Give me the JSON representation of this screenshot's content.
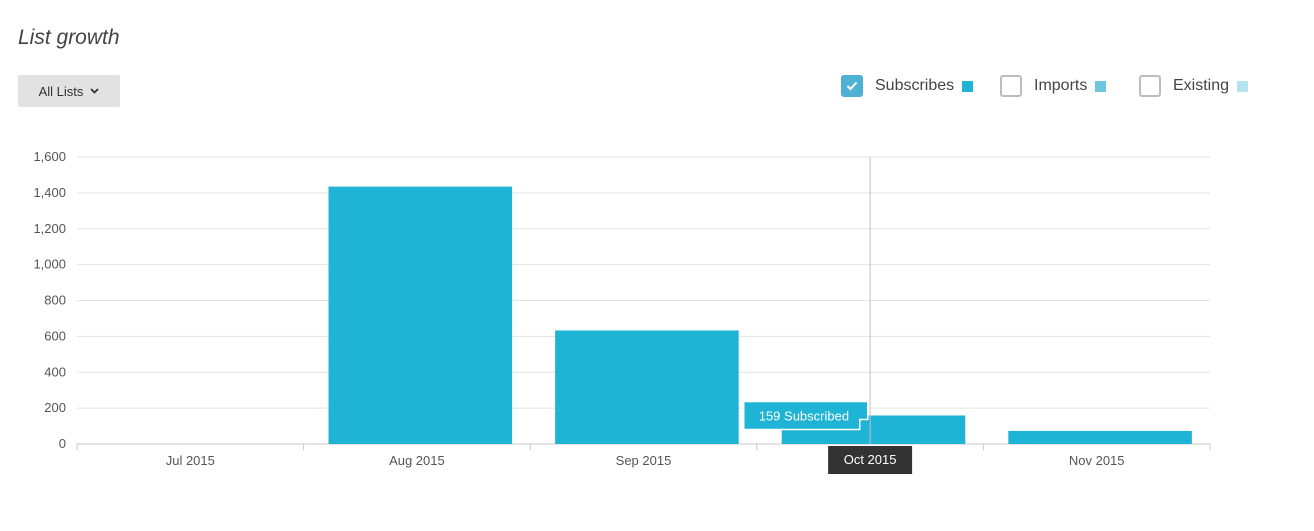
{
  "title": "List growth",
  "filter": {
    "label": "All Lists",
    "icon": "chevron-down-icon"
  },
  "legend": [
    {
      "label": "Subscribes",
      "checked": true,
      "color": "#1fb3d5"
    },
    {
      "label": "Imports",
      "checked": false,
      "color": "#6bc8de"
    },
    {
      "label": "Existing",
      "checked": false,
      "color": "#b3e3ee"
    }
  ],
  "chart_data": {
    "type": "bar",
    "categories": [
      "Jul 2015",
      "Aug 2015",
      "Sep 2015",
      "Oct 2015",
      "Nov 2015"
    ],
    "series": [
      {
        "name": "Subscribes",
        "values": [
          0,
          1435,
          633,
          159,
          73
        ],
        "color": "#1fb3d5"
      }
    ],
    "ylim": [
      0,
      1600
    ],
    "yticks": [
      "0",
      "200",
      "400",
      "600",
      "800",
      "1,000",
      "1,200",
      "1,400",
      "1,600"
    ],
    "grid": true,
    "tooltip": {
      "category": "Oct 2015",
      "text": "159 Subscribed"
    }
  }
}
